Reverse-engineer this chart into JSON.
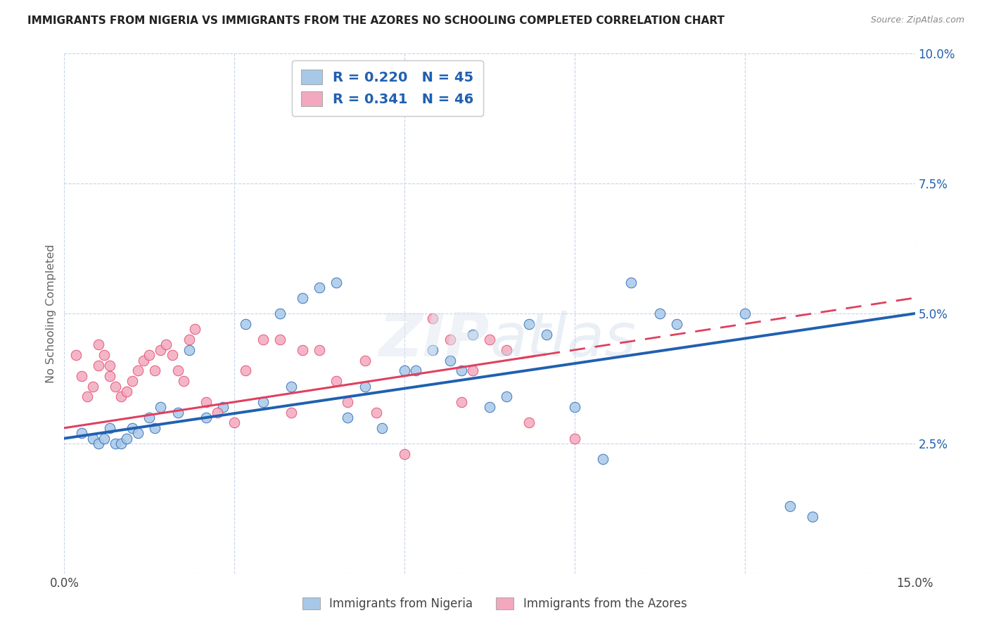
{
  "title": "IMMIGRANTS FROM NIGERIA VS IMMIGRANTS FROM THE AZORES NO SCHOOLING COMPLETED CORRELATION CHART",
  "source": "Source: ZipAtlas.com",
  "ylabel": "No Schooling Completed",
  "legend_label_blue": "Immigrants from Nigeria",
  "legend_label_pink": "Immigrants from the Azores",
  "R_blue": 0.22,
  "N_blue": 45,
  "R_pink": 0.341,
  "N_pink": 46,
  "xlim": [
    0.0,
    0.15
  ],
  "ylim": [
    0.0,
    0.1
  ],
  "xticks": [
    0.0,
    0.03,
    0.06,
    0.09,
    0.12,
    0.15
  ],
  "yticks": [
    0.0,
    0.025,
    0.05,
    0.075,
    0.1
  ],
  "color_blue": "#a8c8e8",
  "color_pink": "#f4a8c0",
  "line_color_blue": "#2060b0",
  "line_color_pink": "#e04060",
  "background_color": "#ffffff",
  "grid_color": "#c8d4e8",
  "blue_x": [
    0.003,
    0.005,
    0.006,
    0.007,
    0.008,
    0.009,
    0.01,
    0.011,
    0.012,
    0.013,
    0.015,
    0.016,
    0.017,
    0.02,
    0.022,
    0.025,
    0.028,
    0.032,
    0.035,
    0.038,
    0.04,
    0.042,
    0.045,
    0.048,
    0.05,
    0.053,
    0.056,
    0.06,
    0.062,
    0.065,
    0.068,
    0.07,
    0.072,
    0.075,
    0.078,
    0.082,
    0.085,
    0.09,
    0.095,
    0.1,
    0.105,
    0.108,
    0.12,
    0.128,
    0.132
  ],
  "blue_y": [
    0.027,
    0.026,
    0.025,
    0.026,
    0.028,
    0.025,
    0.025,
    0.026,
    0.028,
    0.027,
    0.03,
    0.028,
    0.032,
    0.031,
    0.043,
    0.03,
    0.032,
    0.048,
    0.033,
    0.05,
    0.036,
    0.053,
    0.055,
    0.056,
    0.03,
    0.036,
    0.028,
    0.039,
    0.039,
    0.043,
    0.041,
    0.039,
    0.046,
    0.032,
    0.034,
    0.048,
    0.046,
    0.032,
    0.022,
    0.056,
    0.05,
    0.048,
    0.05,
    0.013,
    0.011
  ],
  "pink_x": [
    0.002,
    0.003,
    0.004,
    0.005,
    0.006,
    0.006,
    0.007,
    0.008,
    0.008,
    0.009,
    0.01,
    0.011,
    0.012,
    0.013,
    0.014,
    0.015,
    0.016,
    0.017,
    0.018,
    0.019,
    0.02,
    0.021,
    0.022,
    0.023,
    0.025,
    0.027,
    0.03,
    0.032,
    0.035,
    0.038,
    0.04,
    0.042,
    0.045,
    0.048,
    0.05,
    0.053,
    0.055,
    0.06,
    0.065,
    0.068,
    0.07,
    0.072,
    0.075,
    0.078,
    0.082,
    0.09
  ],
  "pink_y": [
    0.042,
    0.038,
    0.034,
    0.036,
    0.04,
    0.044,
    0.042,
    0.038,
    0.04,
    0.036,
    0.034,
    0.035,
    0.037,
    0.039,
    0.041,
    0.042,
    0.039,
    0.043,
    0.044,
    0.042,
    0.039,
    0.037,
    0.045,
    0.047,
    0.033,
    0.031,
    0.029,
    0.039,
    0.045,
    0.045,
    0.031,
    0.043,
    0.043,
    0.037,
    0.033,
    0.041,
    0.031,
    0.023,
    0.049,
    0.045,
    0.033,
    0.039,
    0.045,
    0.043,
    0.029,
    0.026
  ],
  "watermark": "ZIPatlas"
}
